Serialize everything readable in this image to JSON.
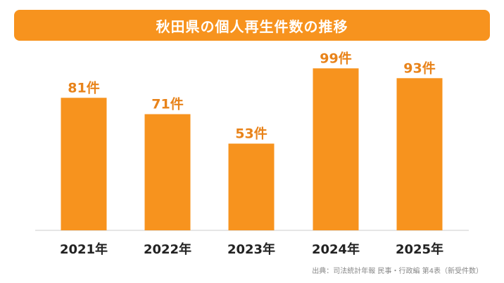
{
  "title": "秋田県の個人再生件数の推移",
  "source": "出典：司法統計年報 民事・行政編 第4表（新受件数）",
  "colors": {
    "accent": "#F7931E",
    "bar_label": "#E8831A",
    "axis": "#cccccc",
    "tick": "#222222"
  },
  "chart_data": {
    "type": "bar",
    "title": "秋田県の個人再生件数の推移",
    "categories": [
      "2021年",
      "2022年",
      "2023年",
      "2024年",
      "2025年"
    ],
    "values": [
      81,
      71,
      53,
      99,
      93
    ],
    "value_labels": [
      "81件",
      "71件",
      "53件",
      "99件",
      "93件"
    ],
    "xlabel": "",
    "ylabel": "",
    "ylim": [
      0,
      100
    ],
    "grid": false,
    "legend": "none"
  }
}
